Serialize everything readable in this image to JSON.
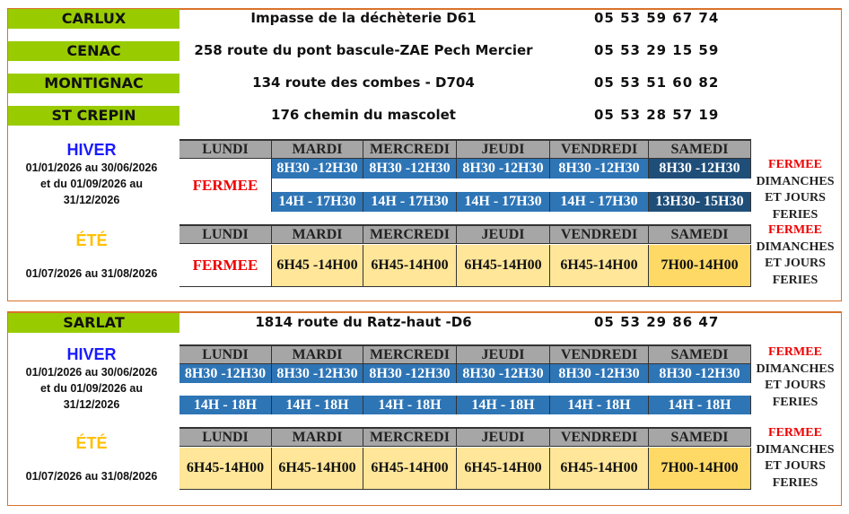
{
  "sites": [
    {
      "name": "CARLUX",
      "address": "Impasse de la déchèterie D61",
      "phone": "05 53 59 67 74"
    },
    {
      "name": "CENAC",
      "address": "258 route du pont bascule-ZAE Pech Mercier",
      "phone": "05 53 29 15 59"
    },
    {
      "name": "MONTIGNAC",
      "address": "134 route des combes - D704",
      "phone": "05 53 51 60 82"
    },
    {
      "name": "ST CREPIN",
      "address": "176 chemin du mascolet",
      "phone": "05 53 28 57 19"
    },
    {
      "name": "SARLAT",
      "address": "1814 route du Ratz-haut -D6",
      "phone": "05 53 29 86 47"
    }
  ],
  "days": [
    "LUNDI",
    "MARDI",
    "MERCREDI",
    "JEUDI",
    "VENDREDI",
    "SAMEDI"
  ],
  "closed": {
    "title": "FERMEE",
    "l1": "DIMANCHES",
    "l2": "ET JOURS",
    "l3": "FERIES"
  },
  "group1": {
    "winter": {
      "title": "HIVER",
      "d1": "01/01/2026 au 30/06/2026",
      "d2": "et du 01/09/2026 au",
      "d3": "31/12/2026",
      "lundi": "FERMEE",
      "am": [
        "8H30 -12H30",
        "8H30 -12H30",
        "8H30 -12H30",
        "8H30 -12H30",
        "8H30 -12H30"
      ],
      "pm": [
        "14H - 17H30",
        "14H - 17H30",
        "14H - 17H30",
        "14H - 17H30",
        "13H30- 15H30"
      ]
    },
    "summer": {
      "title": "ÉTÉ",
      "d1": "01/07/2026 au 31/08/2026",
      "lundi": "FERMEE",
      "hours": [
        "6H45 -14H00",
        "6H45-14H00",
        "6H45-14H00",
        "6H45-14H00",
        "7H00-14H00"
      ]
    }
  },
  "group2": {
    "winter": {
      "title": "HIVER",
      "d1": "01/01/2026 au 30/06/2026",
      "d2": "et du 01/09/2026 au",
      "d3": "31/12/2026",
      "am": [
        "8H30 -12H30",
        "8H30 -12H30",
        "8H30 -12H30",
        "8H30 -12H30",
        "8H30 -12H30",
        "8H30 -12H30"
      ],
      "pm": [
        "14H - 18H",
        "14H - 18H",
        "14H - 18H",
        "14H - 18H",
        "14H - 18H",
        "14H - 18H"
      ]
    },
    "summer": {
      "title": "ÉTÉ",
      "d1": "01/07/2026 au 31/08/2026",
      "hours": [
        "6H45-14H00",
        "6H45-14H00",
        "6H45-14H00",
        "6H45-14H00",
        "6H45-14H00",
        "7H00-14H00"
      ]
    }
  },
  "colors": {
    "green": "#99cc00",
    "blue": "#2e75b6",
    "darkblue": "#1f4e79",
    "yellow": "#ffe699",
    "darkyellow": "#ffd966",
    "winter": "#1a1aff",
    "summer": "#ffc000"
  }
}
